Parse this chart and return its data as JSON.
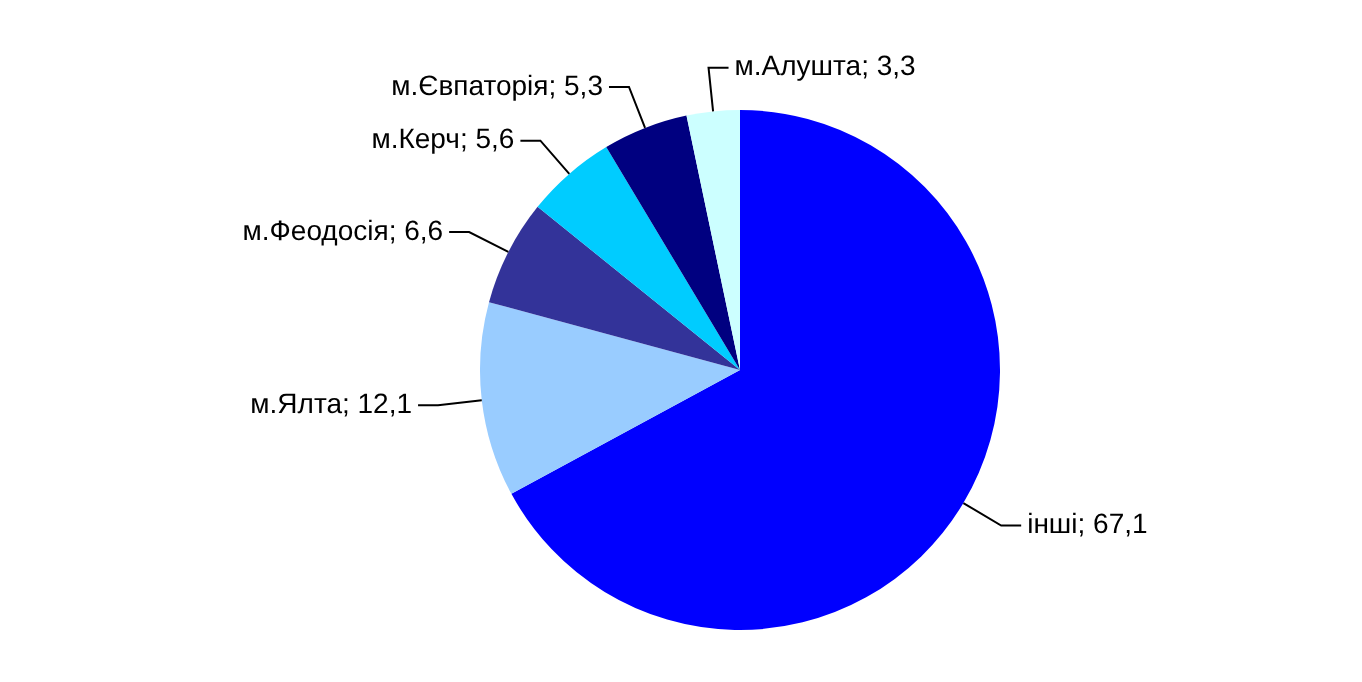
{
  "chart_data": {
    "type": "pie",
    "categories": [
      "інші",
      "м.Ялта",
      "м.Феодосія",
      "м.Керч",
      "м.Євпаторія",
      "м.Алушта"
    ],
    "values": [
      67.1,
      12.1,
      6.6,
      5.6,
      5.3,
      3.3
    ],
    "colors": [
      "#0000ff",
      "#99ccff",
      "#333399",
      "#00ccff",
      "#000080",
      "#ccffff"
    ],
    "value_labels": [
      "67,1",
      "12,1",
      "6,6",
      "5,6",
      "5,3",
      "3,3"
    ],
    "legend": false
  }
}
